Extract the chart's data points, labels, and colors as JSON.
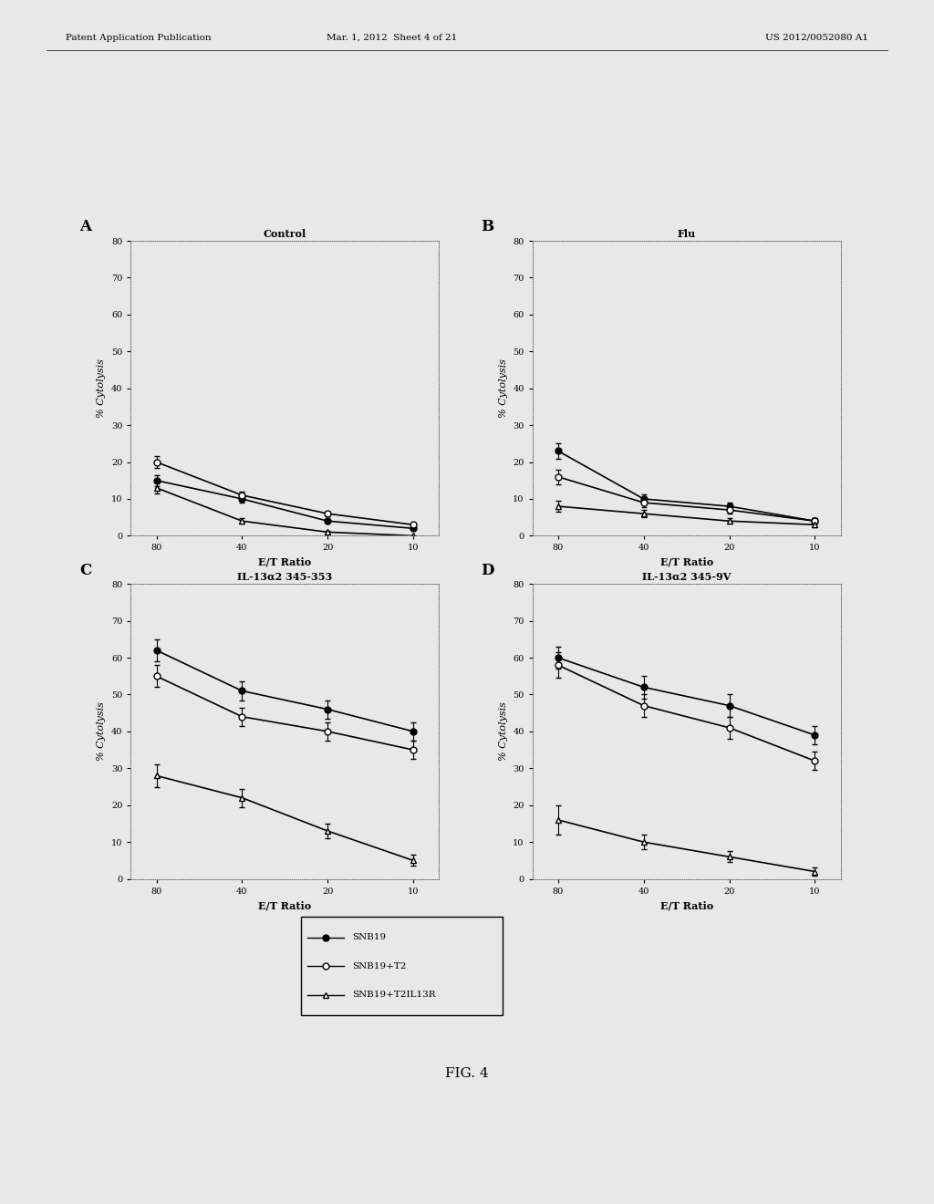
{
  "header_left": "Patent Application Publication",
  "header_center": "Mar. 1, 2012  Sheet 4 of 21",
  "header_right": "US 2012/0052080 A1",
  "background_color": "#e8e8e8",
  "subplots": [
    {
      "label": "A",
      "title": "Control",
      "x": [
        80,
        40,
        20,
        10
      ],
      "series": [
        {
          "name": "SNB19",
          "y": [
            15,
            10,
            4,
            2
          ],
          "yerr": [
            1.5,
            1.0,
            0.5,
            0.3
          ],
          "marker": "filled_circle"
        },
        {
          "name": "SNB19+T2",
          "y": [
            20,
            11,
            6,
            3
          ],
          "yerr": [
            1.5,
            1.0,
            0.6,
            0.4
          ],
          "marker": "open_circle"
        },
        {
          "name": "SNB19+T2IL13R",
          "y": [
            13,
            4,
            1,
            0
          ],
          "yerr": [
            1.5,
            0.8,
            0.3,
            0.2
          ],
          "marker": "open_triangle"
        }
      ],
      "ylim": [
        0,
        80
      ],
      "yticks": [
        0,
        10,
        20,
        30,
        40,
        50,
        60,
        70,
        80
      ],
      "ylabel": "% Cytolysis",
      "xlabel": "E/T Ratio"
    },
    {
      "label": "B",
      "title": "Flu",
      "x": [
        80,
        40,
        20,
        10
      ],
      "series": [
        {
          "name": "SNB19",
          "y": [
            23,
            10,
            8,
            4
          ],
          "yerr": [
            2.0,
            1.2,
            1.0,
            0.8
          ],
          "marker": "filled_circle"
        },
        {
          "name": "SNB19+T2",
          "y": [
            16,
            9,
            7,
            4
          ],
          "yerr": [
            2.0,
            1.2,
            1.0,
            0.8
          ],
          "marker": "open_circle"
        },
        {
          "name": "SNB19+T2IL13R",
          "y": [
            8,
            6,
            4,
            3
          ],
          "yerr": [
            1.5,
            1.0,
            0.8,
            0.6
          ],
          "marker": "open_triangle"
        }
      ],
      "ylim": [
        0,
        80
      ],
      "yticks": [
        0,
        10,
        20,
        30,
        40,
        50,
        60,
        70,
        80
      ],
      "ylabel": "% Cytolysis",
      "xlabel": "E/T Ratio"
    },
    {
      "label": "C",
      "title": "IL-13α2 345-353",
      "x": [
        80,
        40,
        20,
        10
      ],
      "series": [
        {
          "name": "SNB19",
          "y": [
            62,
            51,
            46,
            40
          ],
          "yerr": [
            3.0,
            2.5,
            2.5,
            2.5
          ],
          "marker": "filled_circle"
        },
        {
          "name": "SNB19+T2",
          "y": [
            55,
            44,
            40,
            35
          ],
          "yerr": [
            3.0,
            2.5,
            2.5,
            2.5
          ],
          "marker": "open_circle"
        },
        {
          "name": "SNB19+T2IL13R",
          "y": [
            28,
            22,
            13,
            5
          ],
          "yerr": [
            3.0,
            2.5,
            2.0,
            1.5
          ],
          "marker": "open_triangle"
        }
      ],
      "ylim": [
        0,
        80
      ],
      "yticks": [
        0,
        10,
        20,
        30,
        40,
        50,
        60,
        70,
        80
      ],
      "ylabel": "% Cytolysis",
      "xlabel": "E/T Ratio"
    },
    {
      "label": "D",
      "title": "IL-13α2 345-9V",
      "x": [
        80,
        40,
        20,
        10
      ],
      "series": [
        {
          "name": "SNB19",
          "y": [
            60,
            52,
            47,
            39
          ],
          "yerr": [
            3.0,
            3.0,
            3.0,
            2.5
          ],
          "marker": "filled_circle"
        },
        {
          "name": "SNB19+T2",
          "y": [
            58,
            47,
            41,
            32
          ],
          "yerr": [
            3.5,
            3.0,
            3.0,
            2.5
          ],
          "marker": "open_circle"
        },
        {
          "name": "SNB19+T2IL13R",
          "y": [
            16,
            10,
            6,
            2
          ],
          "yerr": [
            4.0,
            2.0,
            1.5,
            1.0
          ],
          "marker": "open_triangle"
        }
      ],
      "ylim": [
        0,
        80
      ],
      "yticks": [
        0,
        10,
        20,
        30,
        40,
        50,
        60,
        70,
        80
      ],
      "ylabel": "% Cytolysis",
      "xlabel": "E/T Ratio"
    }
  ],
  "legend_items": [
    {
      "label": "SNB19",
      "marker": "filled_circle"
    },
    {
      "label": "SNB19+T2",
      "marker": "open_circle"
    },
    {
      "label": "SNB19+T2IL13R",
      "marker": "open_triangle"
    }
  ],
  "fig_label": "FIG. 4"
}
